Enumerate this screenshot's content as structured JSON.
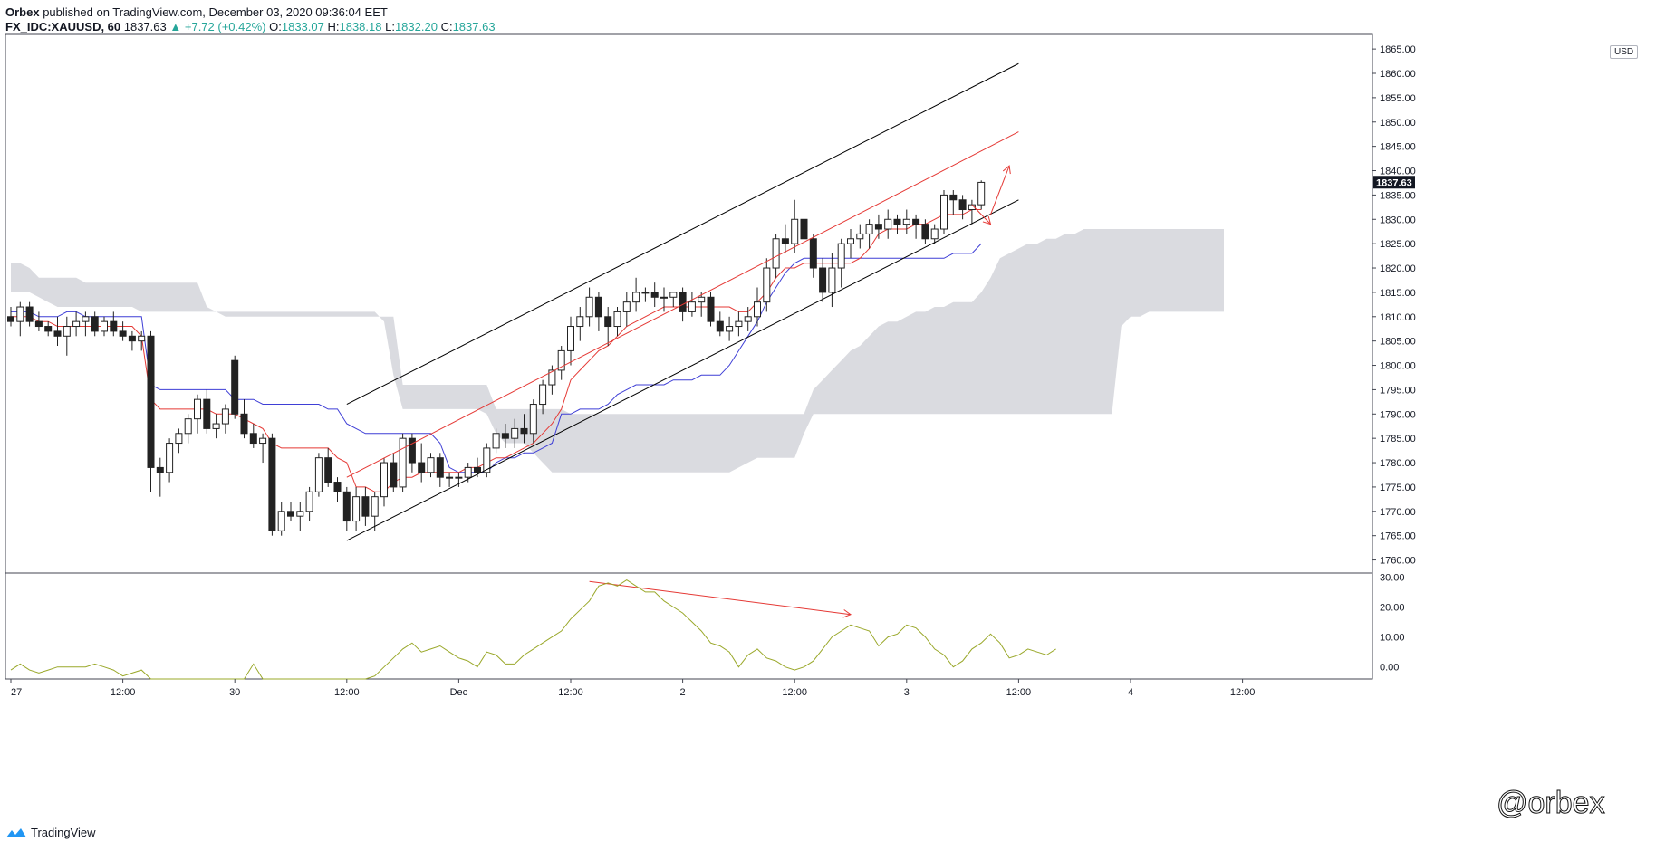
{
  "header": {
    "publisher": "Orbex",
    "published_text": " published on TradingView.com, December 03, 2020 09:36:04 EET",
    "symbol": "FX_IDC:XAUUSD, 60",
    "last": "1837.63",
    "change": "▲ +7.72 (+0.42%)",
    "o_label": "O:",
    "o_value": "1833.07",
    "h_label": "H:",
    "h_value": "1838.18",
    "l_label": "L:",
    "l_value": "1832.20",
    "c_label": "C:",
    "c_value": "1837.63"
  },
  "currency": "USD",
  "footer": {
    "brand": "TradingView"
  },
  "watermark": "@orbex",
  "colors": {
    "up_text": "#26a69a",
    "tenkan": "#e53935",
    "kijun": "#3f3fd6",
    "cloud": "#d8d9de",
    "rsi": "#9aa82a",
    "channel": "#000000",
    "annotation": "#e53935",
    "candle_up": "#ffffff",
    "candle_down": "#222222"
  },
  "chart_data": {
    "type": "candlestick",
    "price_axis_labels": [
      "1760.00",
      "1765.00",
      "1770.00",
      "1775.00",
      "1780.00",
      "1785.00",
      "1790.00",
      "1795.00",
      "1800.00",
      "1805.00",
      "1810.00",
      "1815.00",
      "1820.00",
      "1825.00",
      "1830.00",
      "1835.00",
      "1840.00",
      "1845.00",
      "1850.00",
      "1855.00",
      "1860.00",
      "1865.00"
    ],
    "price_ylim": [
      1757.5,
      1868
    ],
    "last_price_label": "1837.63",
    "last_price": 1837.63,
    "osc_axis_labels": [
      "0.00",
      "10.00",
      "20.00",
      "30.00"
    ],
    "osc_ylim": [
      -4,
      31
    ],
    "time_labels": [
      {
        "i": 0,
        "label": "27"
      },
      {
        "i": 12,
        "label": "12:00"
      },
      {
        "i": 24,
        "label": "30"
      },
      {
        "i": 36,
        "label": "12:00"
      },
      {
        "i": 48,
        "label": "Dec"
      },
      {
        "i": 60,
        "label": "12:00"
      },
      {
        "i": 72,
        "label": "2"
      },
      {
        "i": 84,
        "label": "12:00"
      },
      {
        "i": 96,
        "label": "3"
      },
      {
        "i": 108,
        "label": "12:00"
      },
      {
        "i": 120,
        "label": "4"
      },
      {
        "i": 132,
        "label": "12:00"
      }
    ],
    "candles": [
      [
        1810,
        1812,
        1808,
        1809
      ],
      [
        1809,
        1813,
        1806,
        1812
      ],
      [
        1812,
        1813,
        1808,
        1809
      ],
      [
        1809,
        1811,
        1807,
        1808
      ],
      [
        1808,
        1809,
        1806,
        1807
      ],
      [
        1807,
        1810,
        1804,
        1806
      ],
      [
        1806,
        1810,
        1802,
        1808
      ],
      [
        1808,
        1811,
        1806,
        1809
      ],
      [
        1809,
        1811,
        1806,
        1810
      ],
      [
        1810,
        1811,
        1806,
        1807
      ],
      [
        1807,
        1810,
        1806,
        1809
      ],
      [
        1809,
        1811,
        1806,
        1807
      ],
      [
        1807,
        1809,
        1805,
        1806
      ],
      [
        1806,
        1807,
        1803,
        1805
      ],
      [
        1805,
        1807,
        1803,
        1806
      ],
      [
        1806,
        1807,
        1774,
        1779
      ],
      [
        1779,
        1781,
        1773,
        1778
      ],
      [
        1778,
        1785,
        1776,
        1784
      ],
      [
        1784,
        1787,
        1782,
        1786
      ],
      [
        1786,
        1790,
        1784,
        1789
      ],
      [
        1789,
        1794,
        1786,
        1793
      ],
      [
        1793,
        1795,
        1786,
        1787
      ],
      [
        1787,
        1790,
        1785,
        1788
      ],
      [
        1788,
        1792,
        1786,
        1791
      ],
      [
        1801,
        1802,
        1789,
        1790
      ],
      [
        1790,
        1793,
        1785,
        1786
      ],
      [
        1786,
        1788,
        1783,
        1784
      ],
      [
        1784,
        1786,
        1780,
        1785
      ],
      [
        1785,
        1786,
        1765,
        1766
      ],
      [
        1766,
        1772,
        1765,
        1770
      ],
      [
        1770,
        1772,
        1768,
        1769
      ],
      [
        1769,
        1772,
        1766,
        1770
      ],
      [
        1770,
        1775,
        1768,
        1774
      ],
      [
        1774,
        1782,
        1773,
        1781
      ],
      [
        1781,
        1783,
        1775,
        1776
      ],
      [
        1776,
        1777,
        1772,
        1774
      ],
      [
        1774,
        1775,
        1766,
        1768
      ],
      [
        1768,
        1775,
        1766,
        1773
      ],
      [
        1773,
        1775,
        1767,
        1769
      ],
      [
        1769,
        1774,
        1766,
        1773
      ],
      [
        1773,
        1781,
        1771,
        1780
      ],
      [
        1780,
        1782,
        1774,
        1775
      ],
      [
        1775,
        1786,
        1774,
        1785
      ],
      [
        1785,
        1786,
        1778,
        1780
      ],
      [
        1780,
        1784,
        1776,
        1778
      ],
      [
        1778,
        1782,
        1777,
        1781
      ],
      [
        1781,
        1782,
        1775,
        1777
      ],
      [
        1777,
        1778,
        1775,
        1777
      ],
      [
        1777,
        1778,
        1775,
        1777
      ],
      [
        1777,
        1780,
        1776,
        1779
      ],
      [
        1779,
        1781,
        1777,
        1778
      ],
      [
        1778,
        1784,
        1777,
        1783
      ],
      [
        1783,
        1787,
        1782,
        1786
      ],
      [
        1786,
        1788,
        1783,
        1785
      ],
      [
        1785,
        1789,
        1783,
        1787
      ],
      [
        1787,
        1790,
        1784,
        1786
      ],
      [
        1786,
        1793,
        1784,
        1792
      ],
      [
        1792,
        1797,
        1790,
        1796
      ],
      [
        1796,
        1800,
        1794,
        1799
      ],
      [
        1799,
        1804,
        1797,
        1803
      ],
      [
        1803,
        1810,
        1800,
        1808
      ],
      [
        1808,
        1812,
        1805,
        1810
      ],
      [
        1810,
        1816,
        1808,
        1814
      ],
      [
        1814,
        1815,
        1807,
        1810
      ],
      [
        1810,
        1812,
        1804,
        1808
      ],
      [
        1808,
        1812,
        1806,
        1811
      ],
      [
        1811,
        1815,
        1808,
        1813
      ],
      [
        1813,
        1818,
        1811,
        1815
      ],
      [
        1815,
        1816,
        1813,
        1815
      ],
      [
        1815,
        1817,
        1812,
        1814
      ],
      [
        1814,
        1816,
        1811,
        1814
      ],
      [
        1814,
        1815,
        1812,
        1815
      ],
      [
        1815,
        1816,
        1809,
        1811
      ],
      [
        1811,
        1815,
        1810,
        1813
      ],
      [
        1813,
        1815,
        1810,
        1814
      ],
      [
        1814,
        1815,
        1808,
        1809
      ],
      [
        1809,
        1811,
        1806,
        1807
      ],
      [
        1807,
        1810,
        1805,
        1808
      ],
      [
        1808,
        1811,
        1806,
        1809
      ],
      [
        1809,
        1812,
        1807,
        1810
      ],
      [
        1810,
        1816,
        1808,
        1813
      ],
      [
        1813,
        1822,
        1811,
        1820
      ],
      [
        1820,
        1827,
        1818,
        1826
      ],
      [
        1826,
        1829,
        1823,
        1825
      ],
      [
        1825,
        1834,
        1823,
        1830
      ],
      [
        1830,
        1832,
        1823,
        1826
      ],
      [
        1826,
        1827,
        1818,
        1820
      ],
      [
        1820,
        1822,
        1813,
        1815
      ],
      [
        1815,
        1823,
        1812,
        1820
      ],
      [
        1820,
        1826,
        1816,
        1825
      ],
      [
        1825,
        1828,
        1822,
        1826
      ],
      [
        1826,
        1829,
        1824,
        1827
      ],
      [
        1827,
        1830,
        1824,
        1829
      ],
      [
        1829,
        1831,
        1826,
        1828
      ],
      [
        1828,
        1832,
        1826,
        1830
      ],
      [
        1830,
        1831,
        1827,
        1829
      ],
      [
        1829,
        1832,
        1827,
        1830
      ],
      [
        1830,
        1831,
        1826,
        1829
      ],
      [
        1829,
        1830,
        1825,
        1826
      ],
      [
        1826,
        1829,
        1825,
        1828
      ],
      [
        1828,
        1836,
        1827,
        1835
      ],
      [
        1835,
        1836,
        1831,
        1834
      ],
      [
        1834,
        1835,
        1830,
        1832
      ],
      [
        1832,
        1834,
        1829,
        1833
      ],
      [
        1833,
        1838,
        1832,
        1837.6
      ]
    ],
    "tenkan": [
      1810,
      1810,
      1810,
      1809,
      1809,
      1808,
      1808,
      1808,
      1808,
      1808,
      1808,
      1808,
      1808,
      1808,
      1806,
      1793,
      1791,
      1791,
      1791,
      1791,
      1791,
      1791,
      1790,
      1790,
      1790,
      1789,
      1788,
      1787,
      1784,
      1783,
      1783,
      1783,
      1783,
      1783,
      1783,
      1781,
      1780,
      1775,
      1775,
      1774,
      1774,
      1776,
      1777,
      1777,
      1778,
      1778,
      1778,
      1778,
      1778,
      1779,
      1779,
      1780,
      1781,
      1781,
      1782,
      1783,
      1784,
      1786,
      1788,
      1791,
      1797,
      1799,
      1801,
      1803,
      1804,
      1806,
      1808,
      1809,
      1810,
      1811,
      1812,
      1812,
      1812,
      1812,
      1812,
      1812,
      1812,
      1812,
      1811,
      1811,
      1813,
      1815,
      1818,
      1820,
      1820,
      1821,
      1821,
      1821,
      1821,
      1821,
      1821,
      1822,
      1824,
      1827,
      1828,
      1828,
      1828,
      1829,
      1829,
      1830,
      1831,
      1831,
      1831,
      1832,
      1832
    ],
    "kijun": [
      1811,
      1811,
      1811,
      1810,
      1810,
      1810,
      1811,
      1811,
      1810,
      1810,
      1810,
      1810,
      1810,
      1810,
      1810,
      1796,
      1795,
      1795,
      1795,
      1795,
      1795,
      1795,
      1795,
      1795,
      1793,
      1793,
      1793,
      1792,
      1792,
      1792,
      1792,
      1792,
      1792,
      1792,
      1791,
      1791,
      1788,
      1787,
      1786,
      1786,
      1786,
      1786,
      1786,
      1786,
      1786,
      1786,
      1784,
      1779,
      1778,
      1778,
      1778,
      1778,
      1780,
      1781,
      1781,
      1782,
      1782,
      1783,
      1784,
      1790,
      1790,
      1791,
      1791,
      1791,
      1792,
      1794,
      1795,
      1796,
      1796,
      1796,
      1796,
      1797,
      1797,
      1797,
      1798,
      1798,
      1798,
      1800,
      1803,
      1806,
      1809,
      1813,
      1816,
      1819,
      1821,
      1822,
      1822,
      1822,
      1822,
      1822,
      1822,
      1822,
      1822,
      1822,
      1822,
      1822,
      1822,
      1822,
      1822,
      1822,
      1822,
      1823,
      1823,
      1823,
      1825
    ],
    "cloud_top": [
      1821,
      1821,
      1820,
      1818,
      1818,
      1818,
      1818,
      1818,
      1817,
      1817,
      1817,
      1817,
      1817,
      1817,
      1817,
      1817,
      1817,
      1817,
      1817,
      1817,
      1817,
      1812,
      1811,
      1810,
      1810,
      1810,
      1810,
      1810,
      1810,
      1810,
      1810,
      1810,
      1810,
      1810,
      1810,
      1810,
      1810,
      1810,
      1810,
      1810,
      1810,
      1810,
      1796,
      1796,
      1796,
      1796,
      1796,
      1796,
      1796,
      1796,
      1796,
      1796,
      1791,
      1791,
      1791,
      1791,
      1791,
      1791,
      1791,
      1791,
      1790,
      1790,
      1790,
      1790,
      1790,
      1790,
      1790,
      1790,
      1790,
      1790,
      1790,
      1790,
      1790,
      1790,
      1790,
      1790,
      1790,
      1790,
      1790,
      1790,
      1790,
      1790,
      1790,
      1790,
      1790,
      1790,
      1795,
      1797,
      1799,
      1801,
      1803,
      1804,
      1806,
      1808,
      1809,
      1809,
      1810,
      1811,
      1811,
      1812,
      1812,
      1813,
      1813,
      1813,
      1815,
      1818,
      1822,
      1823,
      1824,
      1825,
      1825,
      1826,
      1826,
      1827,
      1827,
      1828,
      1828,
      1828,
      1828,
      1828,
      1828,
      1828,
      1828,
      1828,
      1828,
      1828,
      1828,
      1828,
      1828,
      1828,
      1828
    ],
    "cloud_bottom": [
      1815,
      1815,
      1815,
      1814,
      1813,
      1812,
      1812,
      1812,
      1812,
      1812,
      1812,
      1812,
      1812,
      1812,
      1811,
      1811,
      1811,
      1811,
      1811,
      1811,
      1811,
      1811,
      1811,
      1811,
      1811,
      1811,
      1811,
      1811,
      1811,
      1811,
      1811,
      1811,
      1811,
      1811,
      1811,
      1811,
      1811,
      1811,
      1811,
      1811,
      1809,
      1798,
      1791,
      1791,
      1791,
      1791,
      1791,
      1791,
      1791,
      1791,
      1791,
      1790,
      1786,
      1784,
      1784,
      1784,
      1782,
      1780,
      1778,
      1778,
      1778,
      1778,
      1778,
      1778,
      1778,
      1778,
      1778,
      1778,
      1778,
      1778,
      1778,
      1778,
      1778,
      1778,
      1778,
      1778,
      1778,
      1778,
      1779,
      1780,
      1781,
      1781,
      1781,
      1781,
      1781,
      1786,
      1790,
      1790,
      1790,
      1790,
      1790,
      1790,
      1790,
      1790,
      1790,
      1790,
      1790,
      1790,
      1790,
      1790,
      1790,
      1790,
      1790,
      1790,
      1790,
      1790,
      1790,
      1790,
      1790,
      1790,
      1790,
      1790,
      1790,
      1790,
      1790,
      1790,
      1790,
      1790,
      1790,
      1808,
      1810,
      1810,
      1811,
      1811,
      1811,
      1811,
      1811,
      1811,
      1811,
      1811,
      1811
    ],
    "oscillator": [
      -1,
      1,
      -1,
      -2,
      -1,
      0,
      0,
      0,
      0,
      1,
      0,
      -1,
      -3,
      -2,
      -1,
      -4,
      -4,
      -4,
      -4,
      -4,
      -4,
      -4,
      -4,
      -4,
      -4,
      -4,
      1,
      -4,
      -4,
      -4,
      -4,
      -4,
      -4,
      -4,
      -4,
      -4,
      -4,
      -4,
      -4,
      -3,
      0,
      3,
      6,
      8,
      5,
      6,
      7,
      5,
      3,
      2,
      0,
      5,
      4,
      1,
      1,
      4,
      6,
      8,
      10,
      12,
      16,
      19,
      22,
      27,
      28,
      27,
      29,
      27,
      25,
      25,
      22,
      20,
      18,
      15,
      12,
      8,
      7,
      5,
      0,
      4,
      6,
      3,
      2,
      0,
      -1,
      0,
      2,
      6,
      10,
      12,
      14,
      13,
      12,
      7,
      10,
      11,
      14,
      13,
      10,
      6,
      4,
      0,
      2,
      6,
      8,
      11,
      8,
      3,
      4,
      6,
      5,
      4,
      6
    ],
    "channel": {
      "upper": [
        [
          36,
          1792
        ],
        [
          108,
          1862
        ]
      ],
      "mid": [
        [
          36,
          1777
        ],
        [
          108,
          1848
        ]
      ],
      "lower": [
        [
          36,
          1764
        ],
        [
          108,
          1834
        ]
      ]
    },
    "annotations": {
      "arrow_up": [
        [
          105,
          1831
        ],
        [
          107,
          1841
        ]
      ],
      "arrow_down": [
        [
          103,
          1833
        ],
        [
          105,
          1829
        ]
      ],
      "osc_arrow": [
        [
          62,
          28.5
        ],
        [
          90,
          17.5
        ]
      ]
    }
  }
}
